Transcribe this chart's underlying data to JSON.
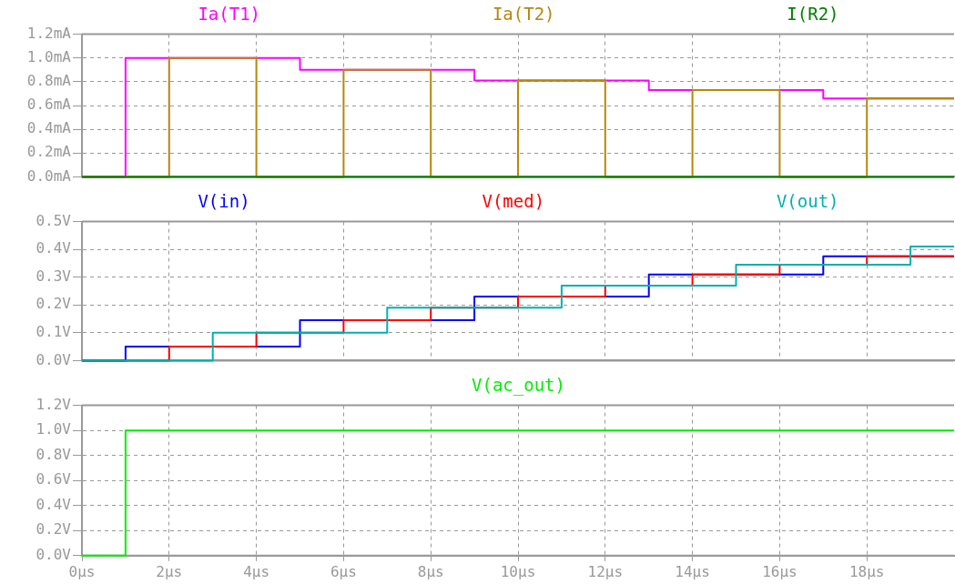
{
  "chart_data": [
    {
      "type": "step",
      "xlim": [
        0,
        20
      ],
      "xticks": [
        {
          "value": 0,
          "label": null
        },
        {
          "value": 2,
          "label": null
        },
        {
          "value": 4,
          "label": null
        },
        {
          "value": 6,
          "label": null
        },
        {
          "value": 8,
          "label": null
        },
        {
          "value": 10,
          "label": null
        },
        {
          "value": 12,
          "label": null
        },
        {
          "value": 14,
          "label": null
        },
        {
          "value": 16,
          "label": null
        },
        {
          "value": 18,
          "label": null
        }
      ],
      "ylim": [
        0,
        1.2
      ],
      "yticks": [
        {
          "value": 0,
          "label": "0.0mA"
        },
        {
          "value": 0.2,
          "label": "0.2mA"
        },
        {
          "value": 0.4,
          "label": "0.4mA"
        },
        {
          "value": 0.6,
          "label": "0.6mA"
        },
        {
          "value": 0.8,
          "label": "0.8mA"
        },
        {
          "value": 1.0,
          "label": "1.0mA"
        },
        {
          "value": 1.2,
          "label": "1.2mA"
        }
      ],
      "grid": true,
      "tick_labels": "y",
      "series": [
        {
          "name": "Ia(T1)",
          "color": "#ff00ff",
          "x": [
            0,
            1,
            5,
            9,
            13,
            17,
            20
          ],
          "values": [
            0,
            1.0,
            0.9,
            0.81,
            0.73,
            0.66,
            0.66
          ]
        },
        {
          "name": "Ia(T2)",
          "color": "#b8860b",
          "x": [
            0,
            2,
            4,
            6,
            8,
            10,
            12,
            14,
            16,
            18,
            20
          ],
          "values": [
            0,
            1.0,
            0,
            0.9,
            0,
            0.81,
            0,
            0.73,
            0,
            0.66,
            0.66
          ]
        },
        {
          "name": "I(R2)",
          "color": "#008000",
          "x": [
            0,
            20
          ],
          "values": [
            0,
            0
          ]
        }
      ]
    },
    {
      "type": "step",
      "xlim": [
        0,
        20
      ],
      "xticks": [
        {
          "value": 0,
          "label": null
        },
        {
          "value": 2,
          "label": null
        },
        {
          "value": 4,
          "label": null
        },
        {
          "value": 6,
          "label": null
        },
        {
          "value": 8,
          "label": null
        },
        {
          "value": 10,
          "label": null
        },
        {
          "value": 12,
          "label": null
        },
        {
          "value": 14,
          "label": null
        },
        {
          "value": 16,
          "label": null
        },
        {
          "value": 18,
          "label": null
        }
      ],
      "ylim": [
        0,
        0.5
      ],
      "yticks": [
        {
          "value": 0,
          "label": "0.0V"
        },
        {
          "value": 0.1,
          "label": "0.1V"
        },
        {
          "value": 0.2,
          "label": "0.2V"
        },
        {
          "value": 0.3,
          "label": "0.3V"
        },
        {
          "value": 0.4,
          "label": "0.4V"
        },
        {
          "value": 0.5,
          "label": "0.5V"
        }
      ],
      "grid": true,
      "tick_labels": "y",
      "series": [
        {
          "name": "V(in)",
          "color": "#0000ff",
          "x": [
            0,
            1,
            5,
            9,
            13,
            17,
            20
          ],
          "values": [
            0,
            0.05,
            0.145,
            0.23,
            0.31,
            0.375,
            0.375
          ]
        },
        {
          "name": "V(med)",
          "color": "#ff0000",
          "x": [
            0,
            2,
            4,
            6,
            8,
            10,
            12,
            14,
            16,
            18,
            20
          ],
          "values": [
            0,
            0.05,
            0.1,
            0.145,
            0.19,
            0.23,
            0.27,
            0.31,
            0.345,
            0.375,
            0.375
          ]
        },
        {
          "name": "V(out)",
          "color": "#00b0b0",
          "x": [
            0,
            3,
            7,
            11,
            15,
            19,
            20
          ],
          "values": [
            0,
            0.1,
            0.19,
            0.27,
            0.345,
            0.41,
            0.41
          ]
        }
      ]
    },
    {
      "type": "step",
      "xlim": [
        0,
        20
      ],
      "xticks": [
        {
          "value": 0,
          "label": "0µs"
        },
        {
          "value": 2,
          "label": "2µs"
        },
        {
          "value": 4,
          "label": "4µs"
        },
        {
          "value": 6,
          "label": "6µs"
        },
        {
          "value": 8,
          "label": "8µs"
        },
        {
          "value": 10,
          "label": "10µs"
        },
        {
          "value": 12,
          "label": "12µs"
        },
        {
          "value": 14,
          "label": "14µs"
        },
        {
          "value": 16,
          "label": "16µs"
        },
        {
          "value": 18,
          "label": "18µs"
        }
      ],
      "ylim": [
        0,
        1.2
      ],
      "yticks": [
        {
          "value": 0,
          "label": "0.0V"
        },
        {
          "value": 0.2,
          "label": "0.2V"
        },
        {
          "value": 0.4,
          "label": "0.4V"
        },
        {
          "value": 0.6,
          "label": "0.6V"
        },
        {
          "value": 0.8,
          "label": "0.8V"
        },
        {
          "value": 1.0,
          "label": "1.0V"
        },
        {
          "value": 1.2,
          "label": "1.2V"
        }
      ],
      "grid": true,
      "series": [
        {
          "name": "V(ac_out)",
          "color": "#00ee00",
          "x": [
            0,
            1,
            20
          ],
          "values": [
            0,
            1,
            1
          ]
        }
      ]
    }
  ]
}
